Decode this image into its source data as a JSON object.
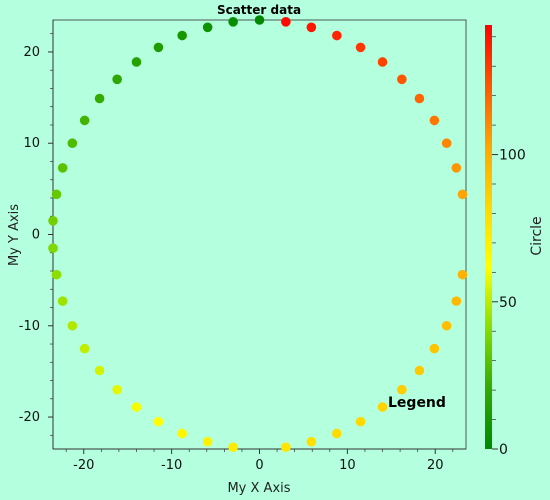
{
  "chart_data": {
    "type": "scatter",
    "title": "Scatter data",
    "xlabel": "My X Axis",
    "ylabel": "My Y Axis",
    "xlim": [
      -23.5,
      23.5
    ],
    "ylim": [
      -23.5,
      23.5
    ],
    "x_ticks": [
      -20,
      -10,
      0,
      10,
      20
    ],
    "y_ticks": [
      -20,
      -10,
      0,
      10,
      20
    ],
    "legend_label": "Legend",
    "legend_position": "bottom-right",
    "grid": false,
    "colorbar": {
      "title": "Circle",
      "range": [
        0,
        144
      ],
      "ticks": [
        0,
        50,
        100
      ],
      "colormap": [
        "#008800",
        "#33aa00",
        "#88dd00",
        "#ffff00",
        "#ffd700",
        "#ffa500",
        "#ff5500",
        "#ff0000"
      ]
    },
    "points": [
      {
        "x": 0.0,
        "y": 23.5,
        "c": 0
      },
      {
        "x": -3.0,
        "y": 23.3,
        "c": 3
      },
      {
        "x": -5.9,
        "y": 22.7,
        "c": 6
      },
      {
        "x": -8.8,
        "y": 21.8,
        "c": 9
      },
      {
        "x": -11.5,
        "y": 20.5,
        "c": 12
      },
      {
        "x": -14.0,
        "y": 18.9,
        "c": 15
      },
      {
        "x": -16.2,
        "y": 17.0,
        "c": 18
      },
      {
        "x": -18.2,
        "y": 14.9,
        "c": 21
      },
      {
        "x": -19.9,
        "y": 12.5,
        "c": 24
      },
      {
        "x": -21.3,
        "y": 10.0,
        "c": 27
      },
      {
        "x": -22.4,
        "y": 7.3,
        "c": 30
      },
      {
        "x": -23.1,
        "y": 4.4,
        "c": 33
      },
      {
        "x": -23.5,
        "y": 1.5,
        "c": 36
      },
      {
        "x": -23.5,
        "y": -1.5,
        "c": 39
      },
      {
        "x": -23.1,
        "y": -4.4,
        "c": 42
      },
      {
        "x": -22.4,
        "y": -7.3,
        "c": 45
      },
      {
        "x": -21.3,
        "y": -10.0,
        "c": 48
      },
      {
        "x": -19.9,
        "y": -12.5,
        "c": 51
      },
      {
        "x": -18.2,
        "y": -14.9,
        "c": 54
      },
      {
        "x": -16.2,
        "y": -17.0,
        "c": 57
      },
      {
        "x": -14.0,
        "y": -18.9,
        "c": 60
      },
      {
        "x": -11.5,
        "y": -20.5,
        "c": 63
      },
      {
        "x": -8.8,
        "y": -21.8,
        "c": 66
      },
      {
        "x": -5.9,
        "y": -22.7,
        "c": 69
      },
      {
        "x": -3.0,
        "y": -23.3,
        "c": 72
      },
      {
        "x": 3.0,
        "y": -23.3,
        "c": 75
      },
      {
        "x": 5.9,
        "y": -22.7,
        "c": 78
      },
      {
        "x": 8.8,
        "y": -21.8,
        "c": 80
      },
      {
        "x": 11.5,
        "y": -20.5,
        "c": 82
      },
      {
        "x": 14.0,
        "y": -18.9,
        "c": 84
      },
      {
        "x": 16.2,
        "y": -17.0,
        "c": 86
      },
      {
        "x": 18.2,
        "y": -14.9,
        "c": 88
      },
      {
        "x": 19.9,
        "y": -12.5,
        "c": 90
      },
      {
        "x": 21.3,
        "y": -10.0,
        "c": 92
      },
      {
        "x": 22.4,
        "y": -7.3,
        "c": 95
      },
      {
        "x": 23.1,
        "y": -4.4,
        "c": 98
      },
      {
        "x": 23.1,
        "y": 4.4,
        "c": 103
      },
      {
        "x": 22.4,
        "y": 7.3,
        "c": 107
      },
      {
        "x": 21.3,
        "y": 10.0,
        "c": 111
      },
      {
        "x": 19.9,
        "y": 12.5,
        "c": 115
      },
      {
        "x": 18.2,
        "y": 14.9,
        "c": 119
      },
      {
        "x": 16.2,
        "y": 17.0,
        "c": 123
      },
      {
        "x": 14.0,
        "y": 18.9,
        "c": 127
      },
      {
        "x": 11.5,
        "y": 20.5,
        "c": 131
      },
      {
        "x": 8.8,
        "y": 21.8,
        "c": 135
      },
      {
        "x": 5.9,
        "y": 22.7,
        "c": 139
      },
      {
        "x": 3.0,
        "y": 23.3,
        "c": 142
      }
    ]
  }
}
